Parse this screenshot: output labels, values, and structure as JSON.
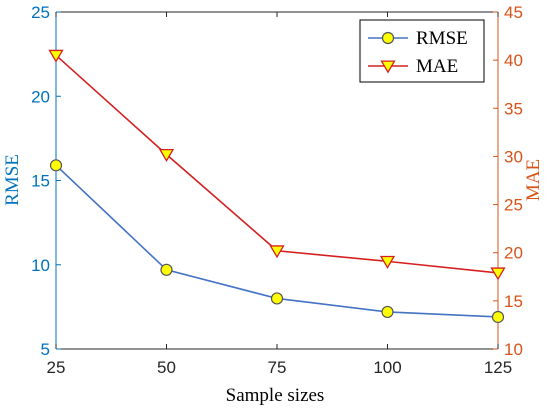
{
  "chart_data": {
    "type": "line",
    "xlabel": "Sample sizes",
    "x": [
      25,
      50,
      75,
      100,
      125
    ],
    "xlim": [
      25,
      125
    ],
    "xticks": [
      25,
      50,
      75,
      100,
      125
    ],
    "y_left": {
      "label": "RMSE",
      "lim": [
        5,
        25
      ],
      "ticks": [
        5,
        10,
        15,
        20,
        25
      ],
      "color": "#0072BD"
    },
    "y_right": {
      "label": "MAE",
      "lim": [
        10,
        45
      ],
      "ticks": [
        10,
        15,
        20,
        25,
        30,
        35,
        40,
        45
      ],
      "color": "#D95319"
    },
    "grid": false,
    "legend_position": "top-right",
    "series": [
      {
        "name": "RMSE",
        "axis": "left",
        "values": [
          15.9,
          9.7,
          8.0,
          7.2,
          6.9
        ],
        "line_color": "#4472C4",
        "marker": "circle",
        "marker_fill": "#FFFF00",
        "marker_edge": "#555555"
      },
      {
        "name": "MAE",
        "axis": "right",
        "values": [
          40.5,
          30.2,
          20.2,
          19.1,
          17.9
        ],
        "line_color": "#D42020",
        "marker": "triangle-down",
        "marker_fill": "#FFFF00",
        "marker_edge": "#D42020"
      }
    ]
  }
}
